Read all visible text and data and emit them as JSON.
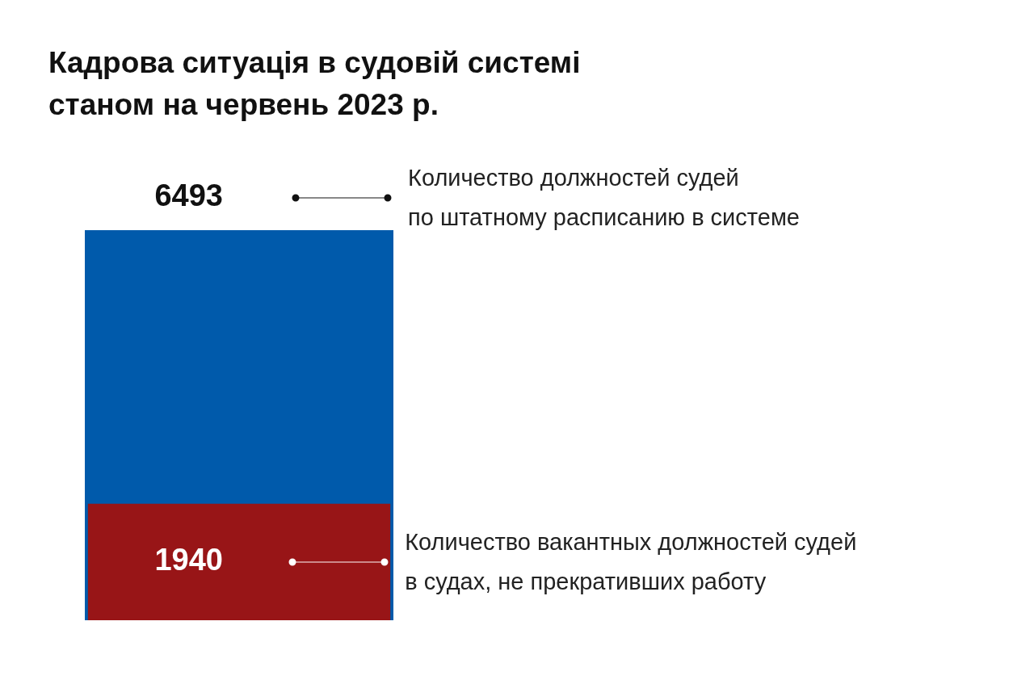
{
  "chart_data": {
    "type": "bar",
    "title": "Кадрова ситуація в судовій системі\nстаном на червень 2023 р.",
    "categories": [
      null
    ],
    "series": [
      {
        "color": "#005aab",
        "values": [
          6493
        ]
      },
      {
        "color": "#981517",
        "values": [
          1940
        ]
      }
    ],
    "data_labels": true,
    "annotations": [
      "Количество должностей судей\nпо штатному расписанию в системе",
      "Количество вакантных должностей судей\nв судах, не прекративших работу"
    ]
  }
}
